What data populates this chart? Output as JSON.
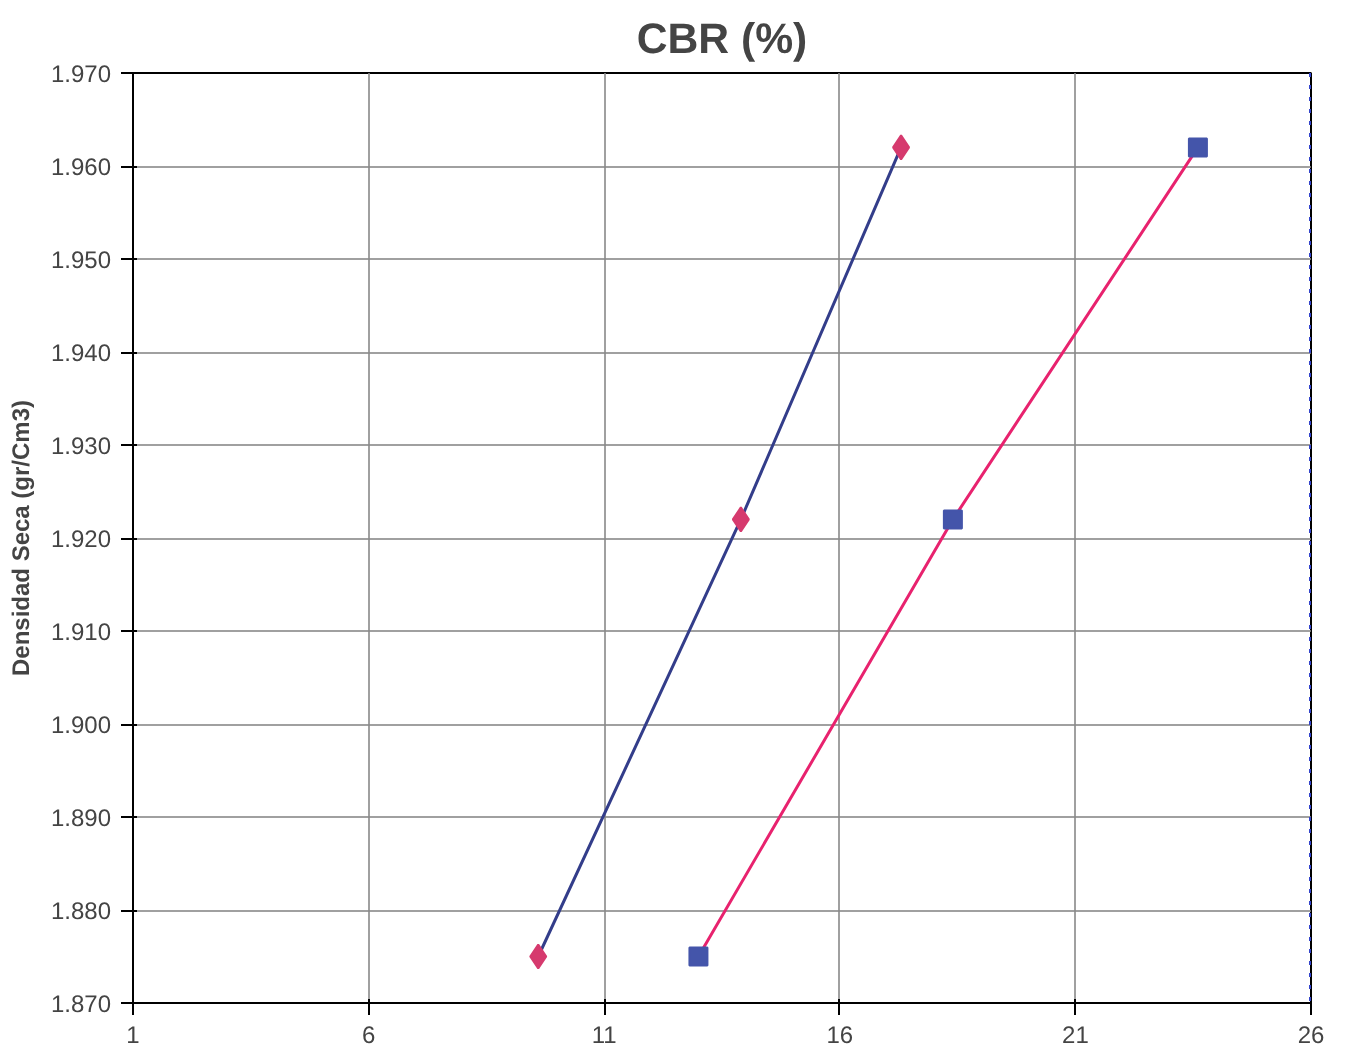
{
  "chart_data": {
    "type": "line",
    "title": "CBR (%)",
    "ylabel": "Densidad Seca (gr/Cm3)",
    "xlim": [
      1,
      26
    ],
    "xticks": [
      1,
      6,
      11,
      16,
      21,
      26
    ],
    "ylim": [
      1.87,
      1.97
    ],
    "yticks": [
      {
        "value": 1.87,
        "label": "1.870"
      },
      {
        "value": 1.88,
        "label": "1.880"
      },
      {
        "value": 1.89,
        "label": "1.890"
      },
      {
        "value": 1.9,
        "label": "1.900"
      },
      {
        "value": 1.91,
        "label": "1.910"
      },
      {
        "value": 1.92,
        "label": "1.920"
      },
      {
        "value": 1.93,
        "label": "1.930"
      },
      {
        "value": 1.94,
        "label": "1.940"
      },
      {
        "value": 1.95,
        "label": "1.950"
      },
      {
        "value": 1.96,
        "label": "1.960"
      },
      {
        "value": 1.97,
        "label": "1.970"
      }
    ],
    "grid": true,
    "line_style": "solid",
    "series": [
      {
        "x": [
          9.6,
          13.9,
          17.3
        ],
        "values": [
          1.875,
          1.922,
          1.962
        ],
        "color": "#333d8a",
        "colors": [
          "#d63a6e",
          "#d63a6e",
          "#d63a6e"
        ],
        "marker": "diamond"
      },
      {
        "x": [
          13.0,
          18.4,
          23.6
        ],
        "values": [
          1.875,
          1.922,
          1.962
        ],
        "color": "#e8226e",
        "colors": [
          "#4455aa",
          "#4455aa",
          "#4455aa"
        ],
        "marker": "square"
      }
    ],
    "ref_lines": [
      {
        "axis": "x",
        "value": 26,
        "label": null,
        "color": "#3344cc",
        "line_style": "dotted"
      }
    ]
  }
}
